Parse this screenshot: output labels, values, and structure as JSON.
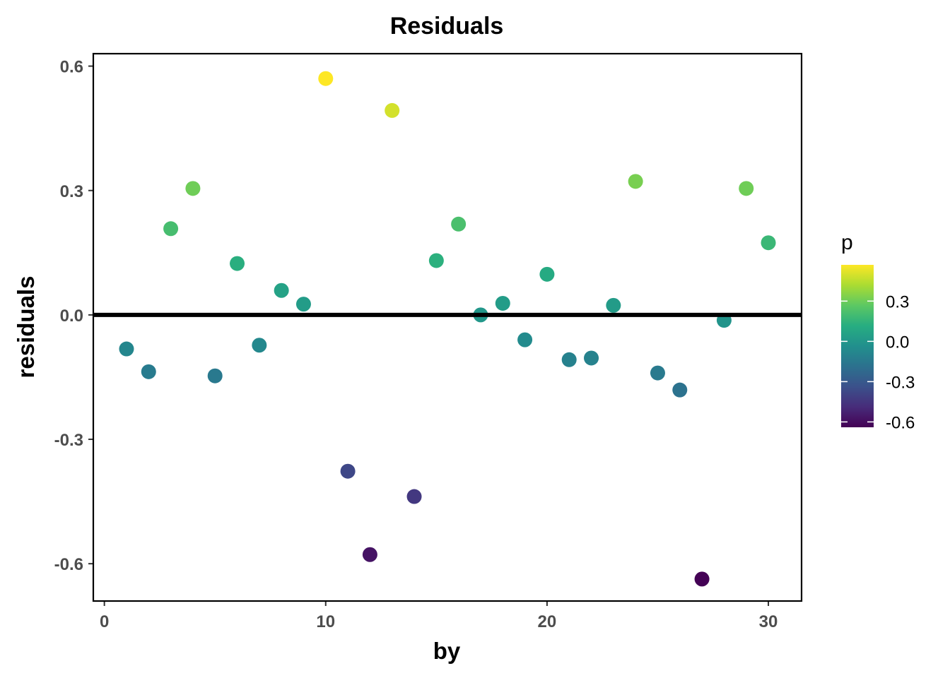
{
  "chart_data": {
    "type": "scatter",
    "title": "Residuals",
    "xlabel": "by",
    "ylabel": "residuals",
    "xlim": [
      -0.5,
      31.5
    ],
    "ylim": [
      -0.69,
      0.63
    ],
    "x_ticks": [
      0,
      10,
      20,
      30
    ],
    "y_ticks": [
      -0.6,
      -0.3,
      0.0,
      0.3,
      0.6
    ],
    "y_tick_labels": [
      "-0.6",
      "-0.3",
      "0.0",
      "0.3",
      "0.6"
    ],
    "x_tick_labels": [
      "0",
      "10",
      "20",
      "30"
    ],
    "reference_line_y": 0,
    "grid": false,
    "color_scale": "viridis",
    "color_range": [
      -0.64,
      0.57
    ],
    "legend": {
      "title": "p",
      "position": "right",
      "breaks": [
        0.3,
        0.0,
        -0.3,
        -0.6
      ],
      "labels": [
        "0.3",
        "0.0",
        "-0.3",
        "-0.6"
      ]
    },
    "x": [
      1,
      2,
      3,
      4,
      5,
      6,
      7,
      8,
      9,
      10,
      11,
      12,
      13,
      14,
      15,
      16,
      17,
      18,
      19,
      20,
      21,
      22,
      23,
      24,
      25,
      26,
      27,
      28,
      29,
      30
    ],
    "y": [
      -0.082,
      -0.137,
      0.208,
      0.305,
      -0.147,
      0.124,
      -0.073,
      0.059,
      0.026,
      0.57,
      -0.377,
      -0.578,
      0.493,
      -0.438,
      0.131,
      0.219,
      0.0,
      0.028,
      -0.06,
      0.098,
      -0.108,
      -0.104,
      0.023,
      0.322,
      -0.14,
      -0.181,
      -0.637,
      -0.013,
      0.305,
      0.174
    ]
  }
}
